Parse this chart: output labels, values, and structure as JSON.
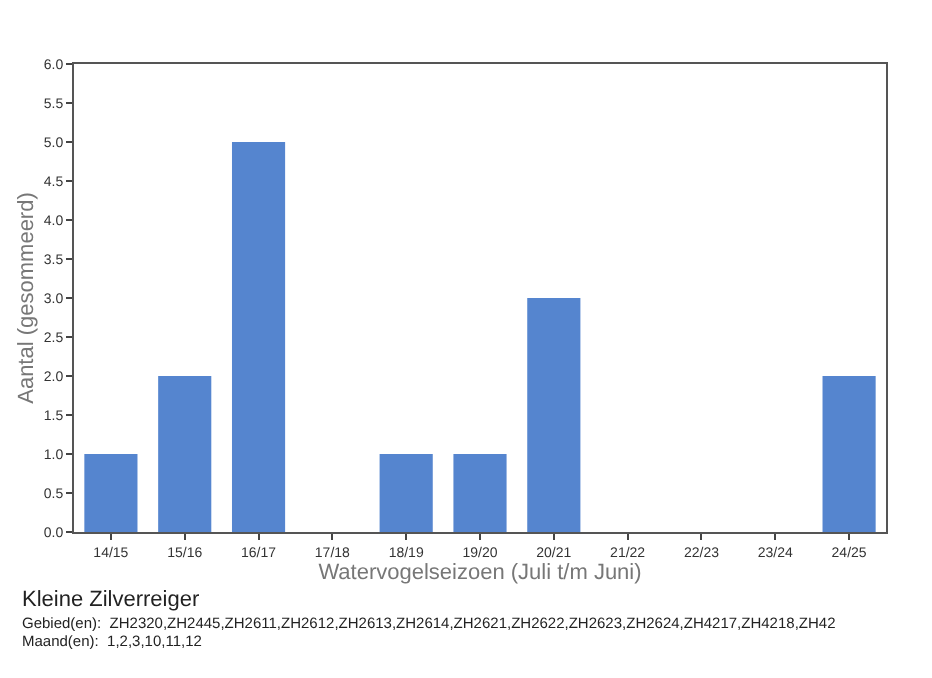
{
  "chart_data": {
    "type": "bar",
    "title": "Kleine Zilverreiger",
    "xlabel": "Watervogelseizoen (Juli t/m Juni)",
    "ylabel": "Aantal (gesommeerd)",
    "categories": [
      "14/15",
      "15/16",
      "16/17",
      "17/18",
      "18/19",
      "19/20",
      "20/21",
      "21/22",
      "22/23",
      "23/24",
      "24/25"
    ],
    "values": [
      1,
      2,
      5,
      0,
      1,
      1,
      3,
      0,
      0,
      0,
      2
    ],
    "color": "#5585cf",
    "ylim": [
      0,
      6
    ],
    "yticks": [
      {
        "value": 0,
        "label": "0.0"
      },
      {
        "value": 0.5,
        "label": "0.5"
      },
      {
        "value": 1,
        "label": "1.0"
      },
      {
        "value": 1.5,
        "label": "1.5"
      },
      {
        "value": 2,
        "label": "2.0"
      },
      {
        "value": 2.5,
        "label": "2.5"
      },
      {
        "value": 3,
        "label": "3.0"
      },
      {
        "value": 3.5,
        "label": "3.5"
      },
      {
        "value": 4,
        "label": "4.0"
      },
      {
        "value": 4.5,
        "label": "4.5"
      },
      {
        "value": 5,
        "label": "5.0"
      },
      {
        "value": 5.5,
        "label": "5.5"
      },
      {
        "value": 6,
        "label": "6.0"
      }
    ],
    "annotations": [
      "Gebied(en):  ZH2320,ZH2445,ZH2611,ZH2612,ZH2613,ZH2614,ZH2621,ZH2622,ZH2623,ZH2624,ZH4217,ZH4218,ZH42",
      "Maand(en):  1,2,3,10,11,12"
    ]
  }
}
